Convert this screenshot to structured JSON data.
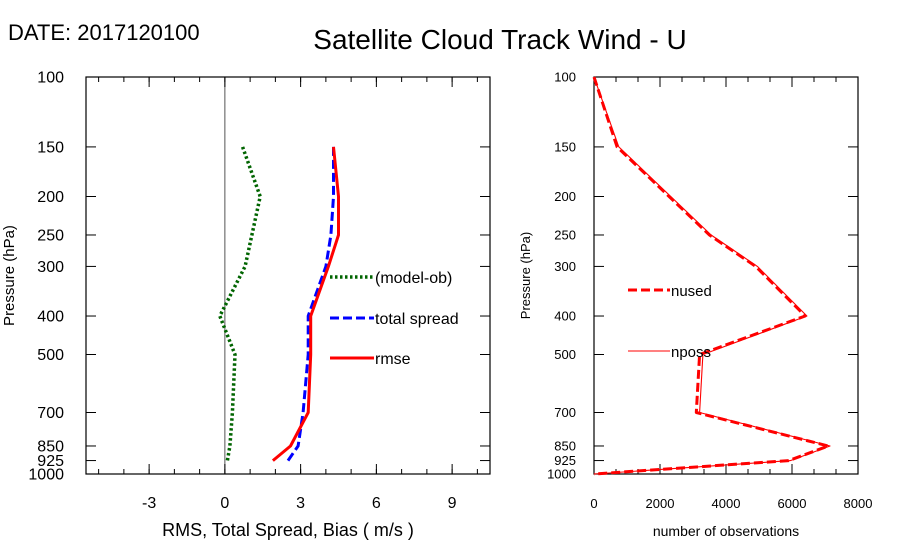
{
  "header": {
    "date_label": "DATE: 2017120100",
    "title": "Satellite Cloud Track Wind - U"
  },
  "chart_data": [
    {
      "type": "line",
      "ylabel": "Pressure (hPa)",
      "xlabel": "RMS, Total Spread, Bias ( m/s )",
      "yscale": "log",
      "yreversed": true,
      "ylim": [
        1000,
        100
      ],
      "xlim": [
        -5.5,
        10.5
      ],
      "xticks": [
        -3,
        0,
        3,
        6,
        9
      ],
      "xtick_labels": [
        "-3",
        "0",
        "3",
        "6",
        "9"
      ],
      "yticks": [
        100,
        150,
        200,
        250,
        300,
        400,
        500,
        700,
        850,
        925,
        1000
      ],
      "ytick_labels": [
        "100",
        "150",
        "200",
        "250",
        "300",
        "400",
        "500",
        "700",
        "850",
        "925",
        "1000"
      ],
      "zero_line": 0,
      "legend_position": "right-center",
      "series": [
        {
          "name": "(model-ob)",
          "color": "#006400",
          "style": "dotted",
          "points": [
            [
              0.7,
              150
            ],
            [
              1.4,
              200
            ],
            [
              0.8,
              300
            ],
            [
              -0.2,
              400
            ],
            [
              0.4,
              500
            ],
            [
              0.3,
              700
            ],
            [
              0.2,
              850
            ],
            [
              0.1,
              925
            ]
          ]
        },
        {
          "name": "total spread",
          "color": "#0000ff",
          "style": "dashed",
          "points": [
            [
              4.3,
              150
            ],
            [
              4.3,
              200
            ],
            [
              4.2,
              250
            ],
            [
              4.0,
              300
            ],
            [
              3.3,
              400
            ],
            [
              3.3,
              500
            ],
            [
              3.1,
              700
            ],
            [
              2.9,
              850
            ],
            [
              2.5,
              925
            ]
          ]
        },
        {
          "name": "rmse",
          "color": "#ff0000",
          "style": "solid",
          "points": [
            [
              4.3,
              150
            ],
            [
              4.5,
              200
            ],
            [
              4.5,
              250
            ],
            [
              4.1,
              300
            ],
            [
              3.4,
              400
            ],
            [
              3.4,
              500
            ],
            [
              3.3,
              700
            ],
            [
              2.6,
              850
            ],
            [
              1.9,
              925
            ]
          ]
        }
      ]
    },
    {
      "type": "line",
      "ylabel": "Pressure (hPa)",
      "xlabel": "number of observations",
      "yscale": "log",
      "yreversed": true,
      "ylim": [
        1000,
        100
      ],
      "xlim": [
        0,
        8000
      ],
      "xticks": [
        0,
        2000,
        4000,
        6000,
        8000
      ],
      "xtick_labels": [
        "0",
        "2000",
        "4000",
        "6000",
        "8000"
      ],
      "yticks": [
        100,
        150,
        200,
        250,
        300,
        400,
        500,
        700,
        850,
        925,
        1000
      ],
      "ytick_labels": [
        "100",
        "150",
        "200",
        "250",
        "300",
        "400",
        "500",
        "700",
        "850",
        "925",
        "1000"
      ],
      "legend_position": "left-center",
      "series": [
        {
          "name": "nused",
          "color": "#ff0000",
          "style": "dashed",
          "points": [
            [
              0,
              100
            ],
            [
              700,
              150
            ],
            [
              3500,
              250
            ],
            [
              4900,
              300
            ],
            [
              6400,
              400
            ],
            [
              3200,
              500
            ],
            [
              3100,
              700
            ],
            [
              7100,
              850
            ],
            [
              5900,
              925
            ],
            [
              0,
              1000
            ]
          ]
        },
        {
          "name": "nposs",
          "color": "#ff0000",
          "style": "thin",
          "points": [
            [
              0,
              100
            ],
            [
              750,
              150
            ],
            [
              3550,
              250
            ],
            [
              4950,
              300
            ],
            [
              6450,
              400
            ],
            [
              3300,
              500
            ],
            [
              3200,
              700
            ],
            [
              7150,
              850
            ],
            [
              5950,
              925
            ],
            [
              0,
              1000
            ]
          ]
        }
      ]
    }
  ]
}
